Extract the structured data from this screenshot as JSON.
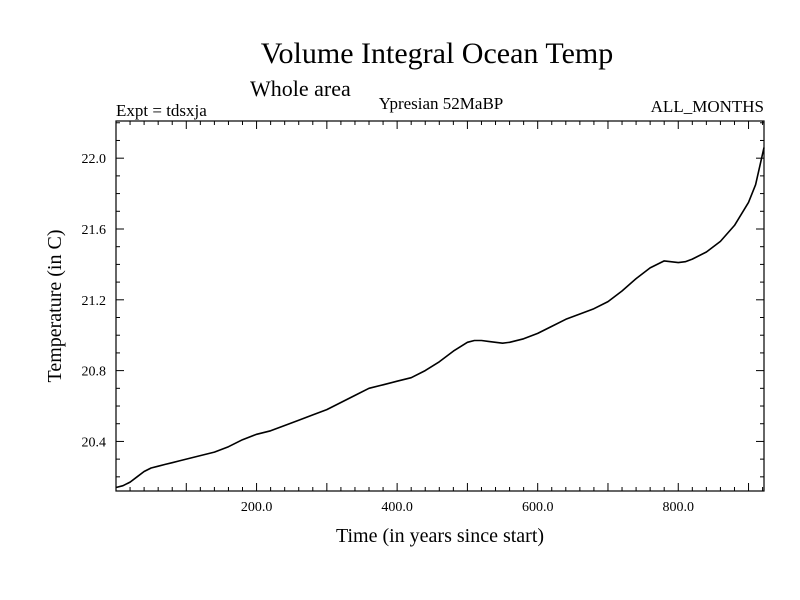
{
  "chart_data": {
    "type": "line",
    "title": "Volume Integral Ocean Temp",
    "subtitle": "Whole area",
    "header_left": "Expt = tdsxja",
    "header_center": "Ypresian  52MaBP",
    "header_right": "ALL_MONTHS",
    "xlabel": "Time (in years since start)",
    "ylabel": "Temperature (in C)",
    "xlim": [
      0,
      922
    ],
    "ylim": [
      20.12,
      22.21
    ],
    "x_ticks": [
      200,
      400,
      600,
      800
    ],
    "x_tick_labels": [
      "200.0",
      "400.0",
      "600.0",
      "800.0"
    ],
    "y_ticks": [
      20.4,
      20.8,
      21.2,
      21.6,
      22.0
    ],
    "y_tick_labels": [
      "20.4",
      "20.8",
      "21.2",
      "21.6",
      "22.0"
    ],
    "grid": false,
    "series": [
      {
        "name": "Volume Integral Ocean Temp",
        "x": [
          0,
          10,
          20,
          30,
          40,
          50,
          60,
          70,
          80,
          90,
          100,
          120,
          140,
          160,
          180,
          200,
          220,
          240,
          260,
          280,
          300,
          320,
          340,
          360,
          380,
          400,
          420,
          440,
          460,
          480,
          500,
          510,
          520,
          530,
          540,
          550,
          560,
          580,
          600,
          620,
          640,
          660,
          680,
          700,
          720,
          740,
          760,
          780,
          800,
          810,
          820,
          840,
          860,
          880,
          900,
          910,
          922
        ],
        "values": [
          20.14,
          20.15,
          20.17,
          20.2,
          20.23,
          20.25,
          20.26,
          20.27,
          20.28,
          20.29,
          20.3,
          20.32,
          20.34,
          20.37,
          20.41,
          20.44,
          20.46,
          20.49,
          20.52,
          20.55,
          20.58,
          20.62,
          20.66,
          20.7,
          20.72,
          20.74,
          20.76,
          20.8,
          20.85,
          20.91,
          20.96,
          20.97,
          20.97,
          20.965,
          20.96,
          20.955,
          20.96,
          20.98,
          21.01,
          21.05,
          21.09,
          21.12,
          21.15,
          21.19,
          21.25,
          21.32,
          21.38,
          21.42,
          21.41,
          21.415,
          21.43,
          21.47,
          21.53,
          21.62,
          21.75,
          21.85,
          22.06
        ]
      }
    ]
  }
}
